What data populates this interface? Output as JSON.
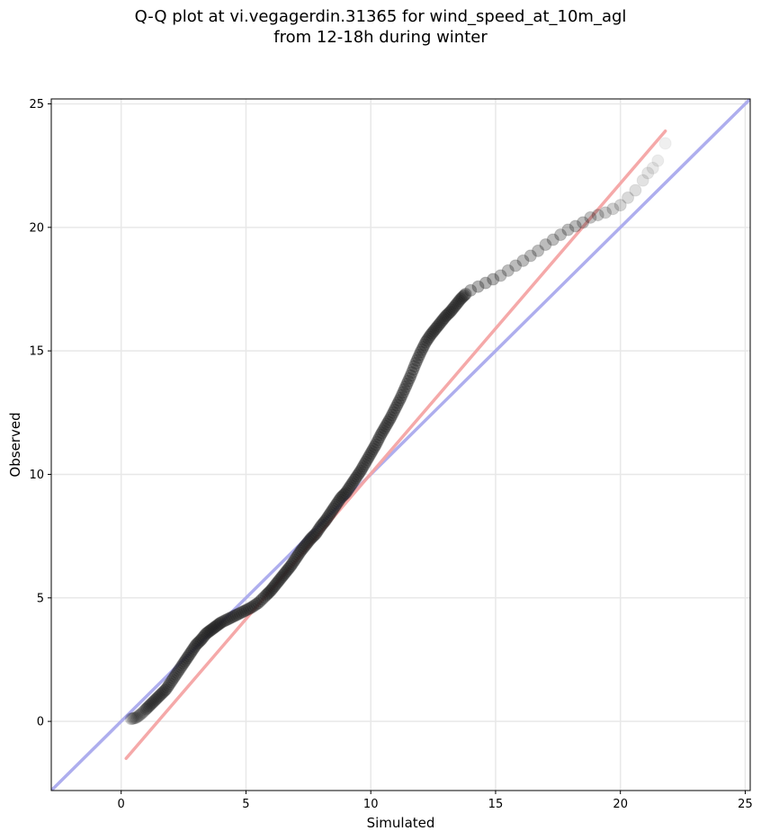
{
  "chart_data": {
    "type": "scatter",
    "title_line1": "Q-Q plot at vi.vegagerdin.31365 for wind_speed_at_10m_agl",
    "title_line2": "from 12-18h during winter",
    "xlabel": "Simulated",
    "ylabel": "Observed",
    "xlim": [
      -2.8,
      25.2
    ],
    "ylim": [
      -2.8,
      25.2
    ],
    "xticks": [
      0,
      5,
      10,
      15,
      20,
      25
    ],
    "yticks": [
      0,
      5,
      10,
      15,
      20,
      25
    ],
    "grid": true,
    "colors": {
      "points": "#222222",
      "identity_line": "#aaaaee",
      "fit_line": "#f5a5a5",
      "grid": "#e8e8e8"
    },
    "reference_lines": [
      {
        "kind": "identity",
        "x": [
          -2.8,
          25.2
        ],
        "y": [
          -2.8,
          25.2
        ]
      },
      {
        "kind": "fit",
        "x": [
          0.2,
          21.8
        ],
        "y": [
          -1.5,
          23.9
        ]
      }
    ],
    "quantiles": {
      "x": [
        0.4,
        0.6,
        0.8,
        1.0,
        1.2,
        1.4,
        1.6,
        1.8,
        2.0,
        2.2,
        2.4,
        2.6,
        2.8,
        3.0,
        3.2,
        3.4,
        3.6,
        3.8,
        4.0,
        4.3,
        4.6,
        4.9,
        5.2,
        5.5,
        5.8,
        6.0,
        6.2,
        6.4,
        6.6,
        6.8,
        7.0,
        7.2,
        7.4,
        7.6,
        7.8,
        8.0,
        8.2,
        8.4,
        8.6,
        8.8,
        9.0,
        9.2,
        9.4,
        9.6,
        9.8,
        10.0,
        10.2,
        10.4,
        10.6,
        10.8,
        11.0,
        11.2,
        11.4,
        11.6,
        11.8,
        12.0,
        12.2,
        12.4,
        12.6,
        12.8,
        13.0,
        13.2,
        13.4,
        13.6,
        13.8,
        14.0,
        14.3,
        14.6,
        14.9,
        15.2,
        15.5,
        15.8,
        16.1,
        16.4,
        16.7,
        17.0,
        17.3,
        17.6,
        17.9,
        18.2,
        18.5,
        18.8,
        19.1,
        19.4,
        19.7,
        20.0,
        20.3,
        20.6,
        20.9,
        21.1,
        21.3,
        21.5,
        21.8
      ],
      "y": [
        0.1,
        0.15,
        0.3,
        0.5,
        0.7,
        0.9,
        1.1,
        1.3,
        1.6,
        1.9,
        2.2,
        2.5,
        2.8,
        3.1,
        3.3,
        3.55,
        3.7,
        3.85,
        4.0,
        4.15,
        4.3,
        4.45,
        4.6,
        4.8,
        5.1,
        5.3,
        5.55,
        5.8,
        6.05,
        6.3,
        6.6,
        6.9,
        7.15,
        7.4,
        7.6,
        7.9,
        8.15,
        8.45,
        8.75,
        9.05,
        9.25,
        9.55,
        9.85,
        10.15,
        10.5,
        10.85,
        11.2,
        11.6,
        11.95,
        12.3,
        12.7,
        13.1,
        13.55,
        14.0,
        14.5,
        14.95,
        15.35,
        15.65,
        15.9,
        16.15,
        16.4,
        16.6,
        16.85,
        17.1,
        17.3,
        17.45,
        17.6,
        17.75,
        17.9,
        18.05,
        18.25,
        18.45,
        18.65,
        18.85,
        19.05,
        19.3,
        19.5,
        19.7,
        19.9,
        20.05,
        20.2,
        20.4,
        20.5,
        20.6,
        20.75,
        20.9,
        21.2,
        21.5,
        21.9,
        22.2,
        22.4,
        22.7,
        23.4
      ]
    }
  }
}
